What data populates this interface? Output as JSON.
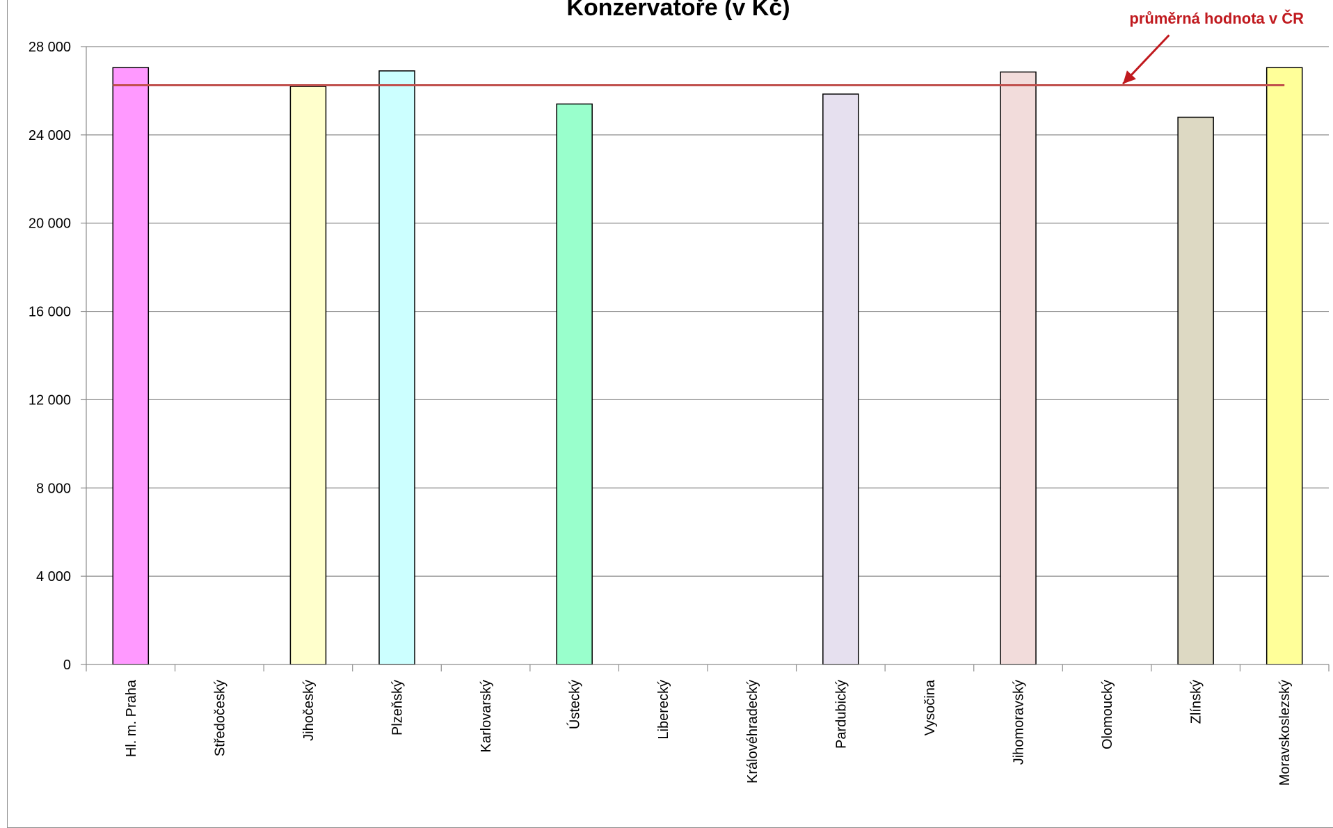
{
  "chart_data": {
    "type": "bar",
    "title": "Konzervatoře (v Kč)",
    "categories": [
      "Hl. m. Praha",
      "Středočeský",
      "Jihočeský",
      "Plzeňský",
      "Karlovarský",
      "Ústecký",
      "Liberecký",
      "Královéhradecký",
      "Pardubický",
      "Vysočina",
      "Jihomoravský",
      "Olomoucký",
      "Zlínský",
      "Moravskoslezský"
    ],
    "values": [
      27050,
      null,
      26200,
      26900,
      null,
      25400,
      null,
      null,
      25850,
      null,
      26850,
      null,
      24800,
      27050
    ],
    "bar_colors": [
      "#ff99ff",
      null,
      "#ffffcc",
      "#ccffff",
      null,
      "#99ffcc",
      null,
      null,
      "#e6e0ef",
      null,
      "#f2dcdb",
      null,
      "#ddd9c3",
      "#ffff99"
    ],
    "reference_line": {
      "value": 26250,
      "label": "průměrná hodnota v ČR",
      "color": "#c0504d"
    },
    "yticks": [
      "0",
      "4 000",
      "8 000",
      "12 000",
      "16 000",
      "20 000",
      "24 000",
      "28 000"
    ],
    "ylim": [
      0,
      28000
    ],
    "grid": true,
    "xlabel": "",
    "ylabel": ""
  }
}
